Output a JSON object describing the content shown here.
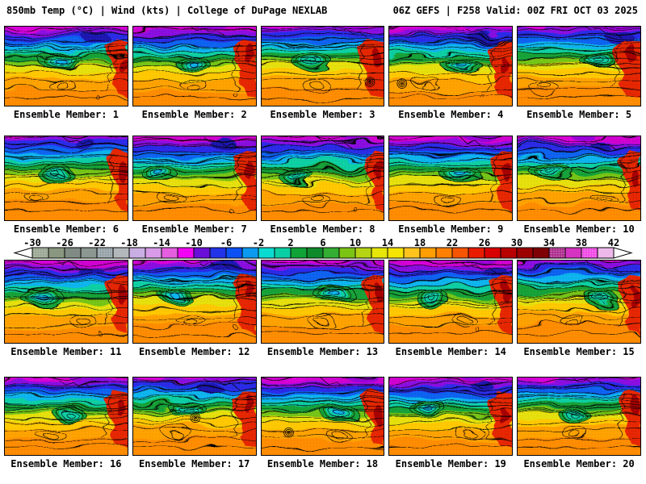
{
  "header": {
    "left": "850mb Temp (°C) | Wind (kts) | College of DuPage NEXLAB",
    "right": "06Z GEFS | F258 Valid: 00Z FRI OCT 03 2025"
  },
  "panels": {
    "labels": [
      "Ensemble Member: 1",
      "Ensemble Member: 2",
      "Ensemble Member: 3",
      "Ensemble Member: 4",
      "Ensemble Member: 5",
      "Ensemble Member: 6",
      "Ensemble Member: 7",
      "Ensemble Member: 8",
      "Ensemble Member: 9",
      "Ensemble Member: 10",
      "Ensemble Member: 11",
      "Ensemble Member: 12",
      "Ensemble Member: 13",
      "Ensemble Member: 14",
      "Ensemble Member: 15",
      "Ensemble Member: 16",
      "Ensemble Member: 17",
      "Ensemble Member: 18",
      "Ensemble Member: 19",
      "Ensemble Member: 20"
    ]
  },
  "colorbar": {
    "ticks": [
      -30,
      -26,
      -22,
      -18,
      -14,
      -10,
      -6,
      -2,
      2,
      6,
      10,
      14,
      18,
      22,
      26,
      30,
      34,
      38,
      42
    ],
    "cell_step_c": 2,
    "range_c": [
      -30,
      42
    ],
    "cells": [
      "#9CA893",
      "#8A9780",
      "#808B84",
      "#8C9792",
      "#95A2A8",
      "#B3B9BA",
      "#C9AEE4",
      "#D89BE8",
      "#E55EE0",
      "#F303F3",
      "#6A0FD8",
      "#2333E8",
      "#0A50F5",
      "#0A9BF0",
      "#0ADBD0",
      "#0BCFA4",
      "#0FA337",
      "#0F8A2B",
      "#33AE33",
      "#7CC414",
      "#B4D414",
      "#E6E60A",
      "#F5E400",
      "#FFC31E",
      "#FF9E00",
      "#FF8000",
      "#F55400",
      "#E81C00",
      "#D80000",
      "#B80000",
      "#9C0000",
      "#7E0004",
      "#B03090",
      "#D633C2",
      "#F14AE6",
      "#EDB8EA"
    ],
    "stipple_cells": [
      0,
      4,
      32,
      34
    ],
    "arrow_fill": "#ffffff"
  },
  "map_palette": {
    "bands": [
      "#cf06cf",
      "#8a10e0",
      "#2a2ae8",
      "#0a62f0",
      "#0ab4ee",
      "#0bcfa4",
      "#12a238",
      "#74c414",
      "#e6e00a",
      "#ffc800",
      "#ffa200",
      "#ff8c00"
    ],
    "patch_magenta": "#d806d8",
    "patch_purple": "#9b00d8",
    "patch_navy": "#1a18b0",
    "hot_region": "#e62800",
    "hot_core": "#a80000",
    "contour": "#000000"
  }
}
